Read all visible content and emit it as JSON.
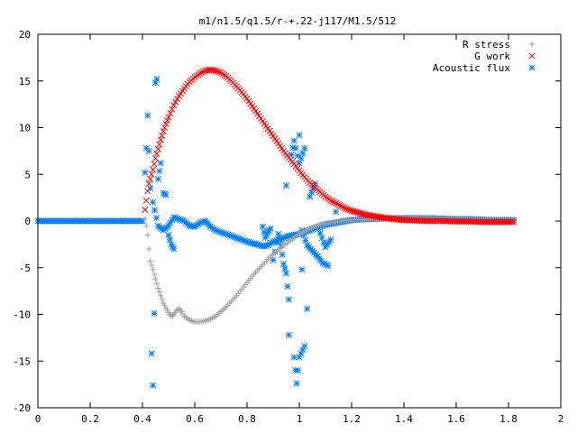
{
  "chart_data": {
    "type": "scatter",
    "title": "m1/n1.5/q1.5/r-+.22-j117/M1.5/512",
    "xlabel": "",
    "ylabel": "",
    "xlim": [
      0,
      2
    ],
    "ylim": [
      -20,
      20
    ],
    "x_ticks": [
      "0",
      "0.2",
      "0.4",
      "0.6",
      "0.8",
      "1",
      "1.2",
      "1.4",
      "1.6",
      "1.8",
      "2"
    ],
    "y_ticks": [
      "20",
      "15",
      "10",
      "5",
      "0",
      "-5",
      "-10",
      "-15",
      "-20"
    ],
    "grid": false,
    "legend_position": "top-right",
    "series": [
      {
        "name": "R stress",
        "marker": "+",
        "color": "#a0a0a0",
        "points": [
          [
            0.41,
            0.2
          ],
          [
            0.415,
            -0.5
          ],
          [
            0.42,
            -1.5
          ],
          [
            0.425,
            -3.0
          ],
          [
            0.43,
            -4.3
          ],
          [
            0.44,
            -5.2
          ],
          [
            0.45,
            -6.2
          ],
          [
            0.46,
            -7.2
          ],
          [
            0.47,
            -8.0
          ],
          [
            0.48,
            -8.8
          ],
          [
            0.49,
            -9.3
          ],
          [
            0.5,
            -9.8
          ],
          [
            0.51,
            -10.2
          ],
          [
            0.52,
            -10.0
          ],
          [
            0.53,
            -9.6
          ],
          [
            0.54,
            -9.4
          ],
          [
            0.55,
            -9.7
          ],
          [
            0.56,
            -10.2
          ],
          [
            0.58,
            -10.6
          ],
          [
            0.6,
            -10.8
          ],
          [
            0.62,
            -10.8
          ],
          [
            0.64,
            -10.7
          ],
          [
            0.66,
            -10.5
          ],
          [
            0.68,
            -10.2
          ],
          [
            0.7,
            -9.7
          ],
          [
            0.72,
            -9.2
          ],
          [
            0.74,
            -8.6
          ],
          [
            0.76,
            -8.0
          ],
          [
            0.78,
            -7.3
          ],
          [
            0.8,
            -6.6
          ],
          [
            0.82,
            -5.9
          ],
          [
            0.84,
            -5.3
          ],
          [
            0.86,
            -4.7
          ],
          [
            0.88,
            -4.1
          ],
          [
            0.9,
            -3.6
          ],
          [
            0.92,
            -3.1
          ],
          [
            0.94,
            -2.6
          ],
          [
            0.96,
            -2.2
          ],
          [
            0.98,
            -1.8
          ],
          [
            1.0,
            -1.4
          ],
          [
            1.02,
            -1.1
          ],
          [
            1.04,
            -0.8
          ],
          [
            1.06,
            -0.6
          ],
          [
            1.08,
            -0.4
          ],
          [
            1.1,
            -0.3
          ],
          [
            1.12,
            -0.2
          ],
          [
            1.14,
            -0.1
          ],
          [
            1.16,
            0.0
          ],
          [
            1.18,
            0.05
          ],
          [
            1.2,
            0.1
          ],
          [
            1.25,
            0.15
          ],
          [
            1.3,
            0.2
          ],
          [
            1.35,
            0.3
          ],
          [
            1.4,
            0.35
          ],
          [
            1.45,
            0.35
          ],
          [
            1.5,
            0.3
          ],
          [
            1.55,
            0.25
          ],
          [
            1.6,
            0.2
          ],
          [
            1.65,
            0.15
          ],
          [
            1.7,
            0.1
          ],
          [
            1.75,
            0.1
          ],
          [
            1.8,
            0.05
          ],
          [
            1.82,
            0.05
          ]
        ]
      },
      {
        "name": "G work",
        "marker": "x",
        "color": "#ff0000",
        "points": [
          [
            0.41,
            1.2
          ],
          [
            0.415,
            2.2
          ],
          [
            0.42,
            3.2
          ],
          [
            0.425,
            4.0
          ],
          [
            0.43,
            4.5
          ],
          [
            0.44,
            5.5
          ],
          [
            0.45,
            6.7
          ],
          [
            0.46,
            7.7
          ],
          [
            0.47,
            8.7
          ],
          [
            0.48,
            9.6
          ],
          [
            0.49,
            10.4
          ],
          [
            0.5,
            11.1
          ],
          [
            0.52,
            12.4
          ],
          [
            0.54,
            13.4
          ],
          [
            0.56,
            14.2
          ],
          [
            0.58,
            14.9
          ],
          [
            0.6,
            15.4
          ],
          [
            0.62,
            15.8
          ],
          [
            0.64,
            16.1
          ],
          [
            0.66,
            16.2
          ],
          [
            0.68,
            16.1
          ],
          [
            0.7,
            15.9
          ],
          [
            0.72,
            15.5
          ],
          [
            0.74,
            15.0
          ],
          [
            0.76,
            14.4
          ],
          [
            0.78,
            13.8
          ],
          [
            0.8,
            13.1
          ],
          [
            0.82,
            12.3
          ],
          [
            0.84,
            11.5
          ],
          [
            0.86,
            10.7
          ],
          [
            0.88,
            9.9
          ],
          [
            0.9,
            9.1
          ],
          [
            0.92,
            8.3
          ],
          [
            0.94,
            7.5
          ],
          [
            0.96,
            6.8
          ],
          [
            0.98,
            6.1
          ],
          [
            1.0,
            5.4
          ],
          [
            1.02,
            4.7
          ],
          [
            1.04,
            4.1
          ],
          [
            1.06,
            3.6
          ],
          [
            1.08,
            3.1
          ],
          [
            1.1,
            2.6
          ],
          [
            1.12,
            2.2
          ],
          [
            1.14,
            1.9
          ],
          [
            1.16,
            1.6
          ],
          [
            1.18,
            1.3
          ],
          [
            1.2,
            1.1
          ],
          [
            1.25,
            0.7
          ],
          [
            1.3,
            0.45
          ],
          [
            1.35,
            0.25
          ],
          [
            1.4,
            0.1
          ],
          [
            1.45,
            0.05
          ],
          [
            1.5,
            0.0
          ],
          [
            1.55,
            0.0
          ],
          [
            1.6,
            -0.05
          ],
          [
            1.65,
            -0.05
          ],
          [
            1.7,
            -0.1
          ],
          [
            1.75,
            -0.1
          ],
          [
            1.8,
            -0.1
          ],
          [
            1.82,
            -0.1
          ]
        ]
      },
      {
        "name": "Acoustic flux",
        "marker": "*",
        "color": "#0080ff",
        "points": [
          [
            0.0,
            0.0
          ],
          [
            0.05,
            0.0
          ],
          [
            0.1,
            0.0
          ],
          [
            0.15,
            0.0
          ],
          [
            0.2,
            0.0
          ],
          [
            0.25,
            0.0
          ],
          [
            0.3,
            0.0
          ],
          [
            0.35,
            0.0
          ],
          [
            0.4,
            0.0
          ],
          [
            0.41,
            5.2
          ],
          [
            0.415,
            7.8
          ],
          [
            0.42,
            11.3
          ],
          [
            0.425,
            7.5
          ],
          [
            0.43,
            3.5
          ],
          [
            0.435,
            -14.2
          ],
          [
            0.44,
            -17.6
          ],
          [
            0.445,
            -9.9
          ],
          [
            0.45,
            14.8
          ],
          [
            0.455,
            15.2
          ],
          [
            0.46,
            4.5
          ],
          [
            0.47,
            6.2
          ],
          [
            0.48,
            3.0
          ],
          [
            0.49,
            2.8
          ],
          [
            0.5,
            -1.5
          ],
          [
            0.51,
            -2.5
          ],
          [
            0.52,
            -3.0
          ],
          [
            0.44,
            2.0
          ],
          [
            0.46,
            -0.5
          ],
          [
            0.48,
            -1.0
          ],
          [
            0.5,
            -0.5
          ],
          [
            0.52,
            0.4
          ],
          [
            0.54,
            0.2
          ],
          [
            0.56,
            0.0
          ],
          [
            0.58,
            -0.5
          ],
          [
            0.6,
            -0.6
          ],
          [
            0.62,
            -0.2
          ],
          [
            0.64,
            0.0
          ],
          [
            0.66,
            -0.6
          ],
          [
            0.68,
            -1.0
          ],
          [
            0.7,
            -1.2
          ],
          [
            0.72,
            -1.4
          ],
          [
            0.74,
            -1.6
          ],
          [
            0.76,
            -1.8
          ],
          [
            0.78,
            -2.0
          ],
          [
            0.8,
            -2.2
          ],
          [
            0.82,
            -2.4
          ],
          [
            0.84,
            -2.5
          ],
          [
            0.86,
            -2.7
          ],
          [
            0.88,
            -2.6
          ],
          [
            0.9,
            -2.2
          ],
          [
            0.92,
            -2.0
          ],
          [
            0.94,
            -1.8
          ],
          [
            0.96,
            -1.6
          ],
          [
            0.98,
            -1.5
          ],
          [
            1.0,
            -1.4
          ],
          [
            1.02,
            -1.2
          ],
          [
            1.04,
            -1.0
          ],
          [
            1.06,
            -0.8
          ],
          [
            1.08,
            -0.6
          ],
          [
            1.1,
            -0.4
          ],
          [
            1.12,
            -0.3
          ],
          [
            1.14,
            -0.2
          ],
          [
            1.16,
            -0.1
          ],
          [
            1.18,
            0.0
          ],
          [
            1.2,
            0.1
          ],
          [
            1.25,
            0.2
          ],
          [
            1.3,
            0.25
          ],
          [
            1.35,
            0.3
          ],
          [
            1.4,
            0.3
          ],
          [
            1.45,
            0.3
          ],
          [
            1.5,
            0.3
          ],
          [
            1.55,
            0.25
          ],
          [
            1.6,
            0.2
          ],
          [
            1.65,
            0.2
          ],
          [
            1.7,
            0.15
          ],
          [
            1.75,
            0.1
          ],
          [
            1.8,
            0.1
          ],
          [
            1.82,
            0.1
          ],
          [
            0.86,
            -0.6
          ],
          [
            0.87,
            -1.8
          ],
          [
            0.88,
            -1.2
          ],
          [
            0.89,
            -0.8
          ],
          [
            0.9,
            -4.2
          ],
          [
            0.92,
            -1.4
          ],
          [
            0.93,
            -2.6
          ],
          [
            0.94,
            -4.6
          ],
          [
            0.95,
            -5.6
          ],
          [
            0.96,
            -8.4
          ],
          [
            0.98,
            -14.6
          ],
          [
            0.99,
            -17.4
          ],
          [
            1.0,
            -14.6
          ],
          [
            1.02,
            -13.4
          ],
          [
            0.96,
            -12.2
          ],
          [
            0.97,
            7.1
          ],
          [
            0.98,
            8.6
          ],
          [
            1.0,
            6.2
          ],
          [
            1.02,
            7.8
          ],
          [
            1.04,
            2.6
          ],
          [
            1.06,
            4.0
          ],
          [
            1.08,
            -1.3
          ],
          [
            1.1,
            -2.8
          ],
          [
            1.12,
            -2.0
          ],
          [
            1.14,
            1.0
          ],
          [
            1.0,
            9.2
          ],
          [
            0.95,
            3.8
          ],
          [
            1.01,
            -1.0
          ],
          [
            1.03,
            -2.6
          ],
          [
            1.05,
            -3.2
          ],
          [
            1.07,
            -3.8
          ],
          [
            1.09,
            -4.5
          ],
          [
            1.11,
            -4.8
          ],
          [
            1.03,
            -9.4
          ],
          [
            1.01,
            -5.2
          ]
        ]
      }
    ]
  }
}
